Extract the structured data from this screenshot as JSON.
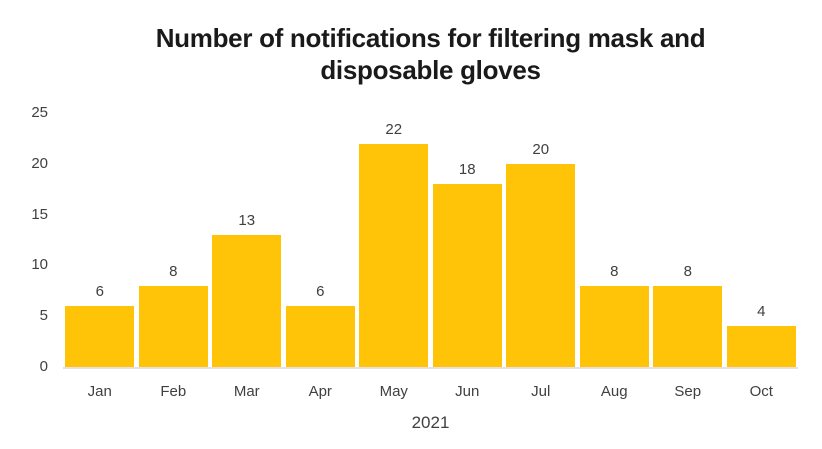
{
  "chart_data": {
    "type": "bar",
    "title": "Number of notifications for filtering mask and disposable gloves",
    "title_lines": [
      "Number of notifications for filtering mask and",
      "disposable gloves"
    ],
    "categories": [
      "Jan",
      "Feb",
      "Mar",
      "Apr",
      "May",
      "Jun",
      "Jul",
      "Aug",
      "Sep",
      "Oct"
    ],
    "values": [
      6,
      8,
      13,
      6,
      22,
      18,
      20,
      8,
      8,
      4
    ],
    "xlabel": "2021",
    "ylabel": "",
    "ylim": [
      0,
      25
    ],
    "yticks": [
      0,
      5,
      10,
      15,
      20,
      25
    ],
    "grid": false,
    "legend": false,
    "data_labels": true,
    "colors": {
      "bar": "#FFC408",
      "axis_line": "#E9E0E0",
      "tick_label": "#404040",
      "title": "#1A1A1A",
      "background": "#FFFFFF"
    }
  }
}
